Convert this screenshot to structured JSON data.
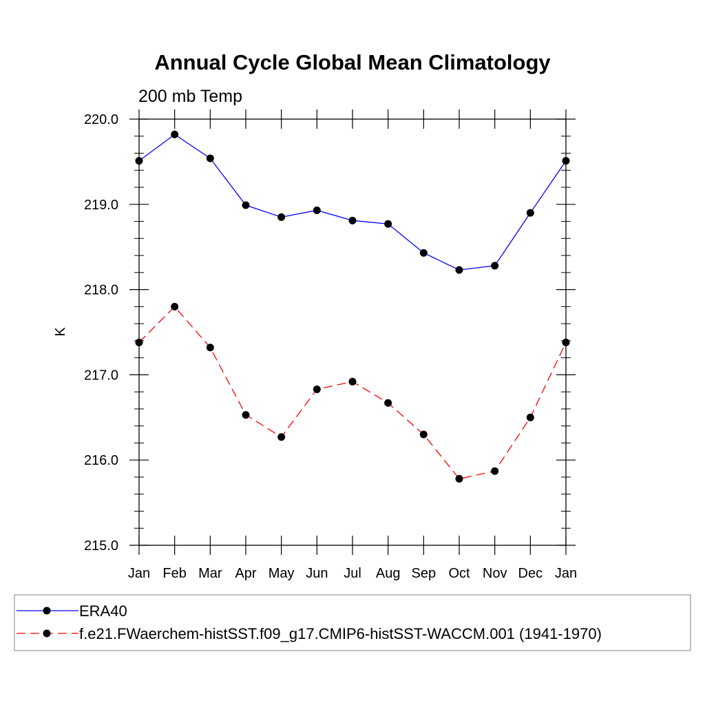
{
  "chart_data": {
    "type": "line",
    "title": "Annual Cycle Global Mean Climatology",
    "subtitle": "200 mb Temp",
    "xlabel": "",
    "ylabel": "K",
    "categories": [
      "Jan",
      "Feb",
      "Mar",
      "Apr",
      "May",
      "Jun",
      "Jul",
      "Aug",
      "Sep",
      "Oct",
      "Nov",
      "Dec",
      "Jan"
    ],
    "ylim": [
      215.0,
      220.0
    ],
    "yticks": [
      "215.0",
      "216.0",
      "217.0",
      "218.0",
      "219.0",
      "220.0"
    ],
    "grid": false,
    "legend_position": "bottom",
    "series": [
      {
        "name": "ERA40",
        "color": "#0000ff",
        "line_style": "solid",
        "marker": "filled-circle",
        "values": [
          219.51,
          219.82,
          219.54,
          218.99,
          218.85,
          218.93,
          218.81,
          218.77,
          218.43,
          218.23,
          218.28,
          218.9,
          219.51
        ]
      },
      {
        "name": "f.e21.FWaerchem-histSST.f09_g17.CMIP6-histSST-WACCM.001 (1941-1970)",
        "color": "#ff0000",
        "line_style": "dashed",
        "marker": "filled-circle",
        "values": [
          217.38,
          217.8,
          217.32,
          216.53,
          216.27,
          216.83,
          216.92,
          216.67,
          216.3,
          215.78,
          215.87,
          216.5,
          217.38
        ]
      }
    ]
  }
}
